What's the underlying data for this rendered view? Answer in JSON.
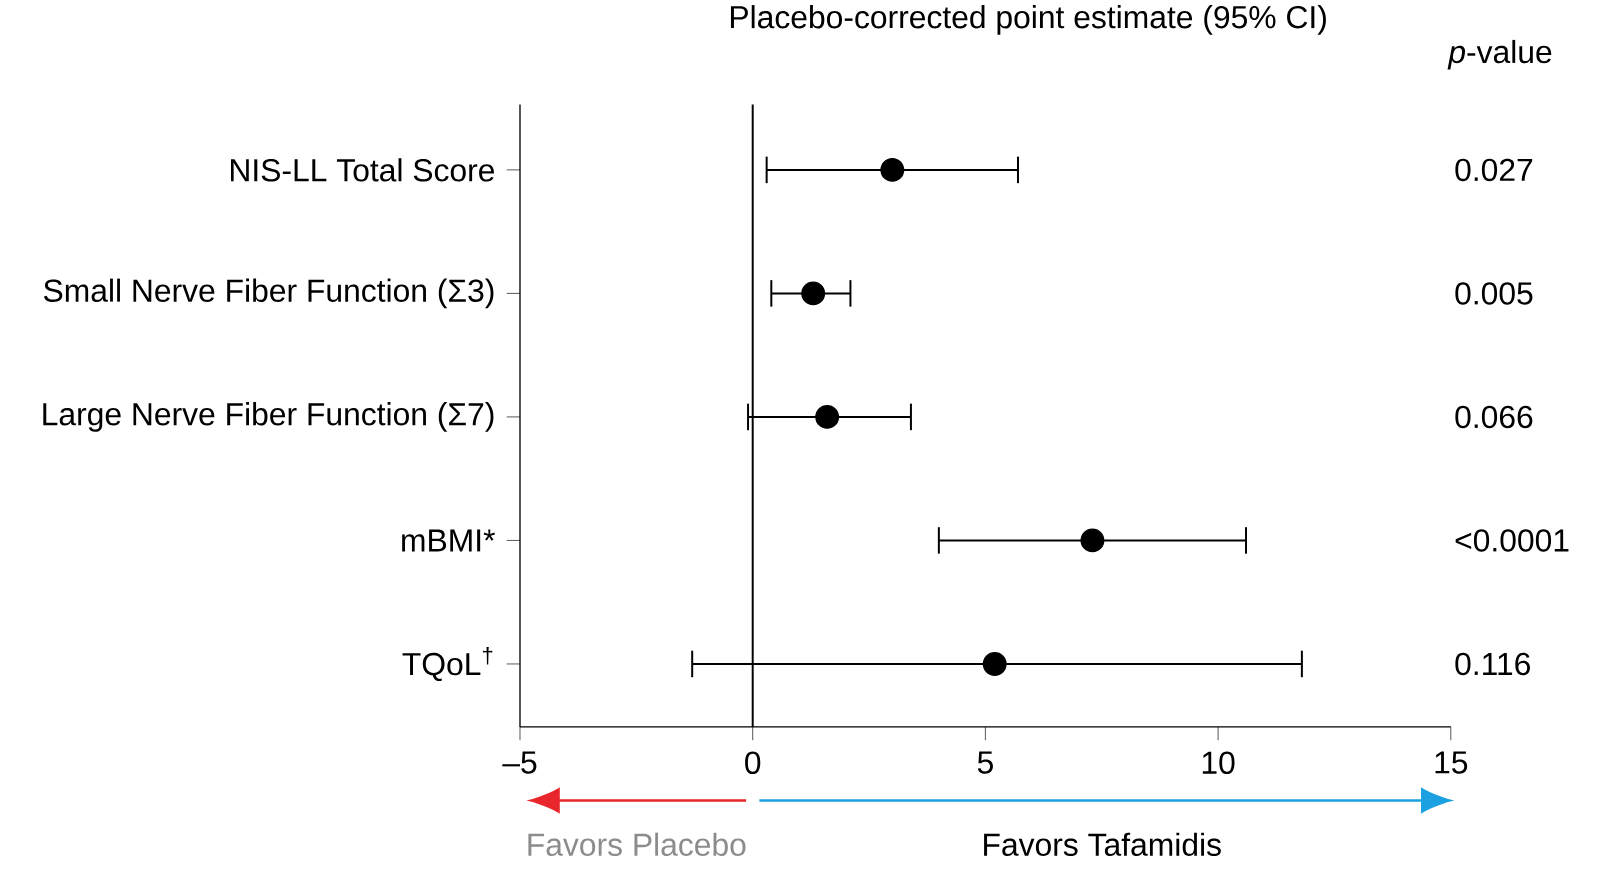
{
  "chart_data": {
    "type": "scatter",
    "orientation": "horizontal",
    "title": "Placebo-corrected point estimate (95% CI)",
    "categories": [
      "NIS-LL Total Score",
      "Small Nerve Fiber Function (Σ3)",
      "Large Nerve Fiber Function (Σ7)",
      "mBMI*",
      "TQoL$^{†}$"
    ],
    "series": [
      {
        "color": "#000000",
        "values": [
          3.0,
          1.3,
          1.6,
          7.3,
          5.2
        ],
        "errors": [
          [
            0.3,
            5.7
          ],
          [
            0.4,
            2.1
          ],
          [
            -0.1,
            3.4
          ],
          [
            4.0,
            10.6
          ],
          [
            -1.3,
            11.8
          ]
        ]
      }
    ],
    "xlim": [
      -5,
      15
    ],
    "xticks": [
      {
        "value": -5,
        "label": "–5"
      },
      0,
      5,
      10,
      15
    ],
    "ref_lines": [
      {
        "axis": "x",
        "value": 0,
        "color": "#000000"
      }
    ],
    "annotations": [
      "*p*-value",
      "0.027",
      "0.005",
      "0.066",
      "<0.0001",
      "0.116",
      "Favors Placebo",
      "Favors Tafamidis"
    ],
    "marker": "circle",
    "grid": false
  }
}
